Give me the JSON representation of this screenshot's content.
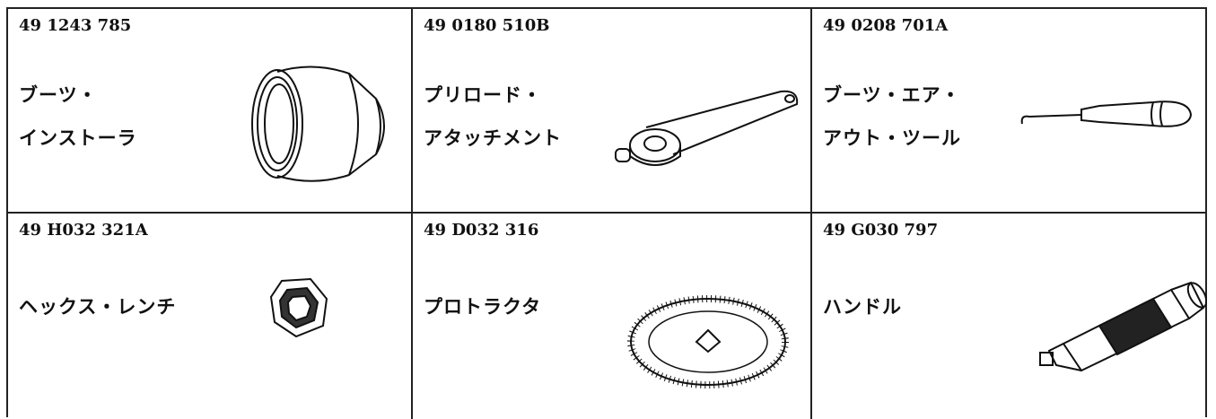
{
  "cells": [
    {
      "part_number": "49 1243 785",
      "name": [
        "ブーツ・",
        "インストーラ"
      ]
    },
    {
      "part_number": "49 0180 510B",
      "name": [
        "プリロード・",
        "アタッチメント"
      ]
    },
    {
      "part_number": "49 0208 701A",
      "name": [
        "ブーツ・エア・",
        "アウト・ツール"
      ]
    },
    {
      "part_number": "49 H032 321A",
      "name": [
        "ヘックス・レンチ"
      ]
    },
    {
      "part_number": "49 D032 316",
      "name": [
        "プロトラクタ"
      ]
    },
    {
      "part_number": "49 G030 797",
      "name": [
        "ハンドル"
      ]
    }
  ]
}
